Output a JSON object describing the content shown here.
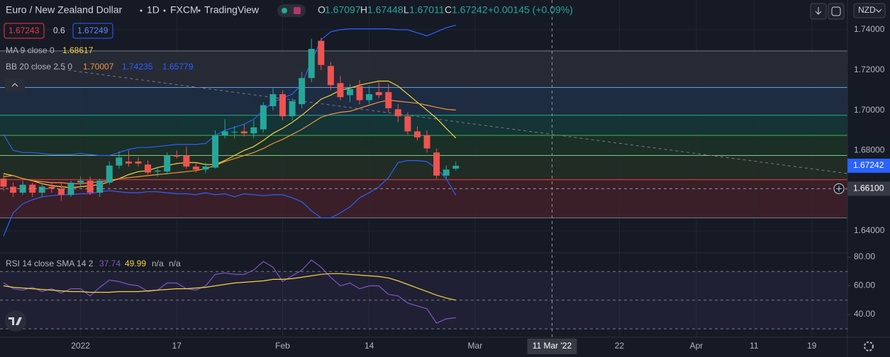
{
  "chart_data": {
    "type": "candlestick",
    "title": "Euro / New Zealand Dollar",
    "interval": "1D",
    "exchange": "FXCM",
    "source": "TradingView",
    "ohlc_labels": [
      "O",
      "H",
      "L",
      "C"
    ],
    "change": "+0.00145 (+0.09%)",
    "sell": 1.67243,
    "spread": 0.6,
    "buy": 1.67249,
    "currency": "NZD",
    "up_color": "#26a69a",
    "down_color": "#ef5350",
    "open": [
      1.666,
      1.662,
      1.659,
      1.663,
      1.659,
      1.662,
      1.661,
      1.658,
      1.664,
      1.665,
      1.659,
      1.664,
      1.6725,
      1.6745,
      1.6745,
      1.673,
      1.6695,
      1.6695,
      1.6775,
      1.6775,
      1.672,
      1.6705,
      1.6715,
      1.6875,
      1.689,
      1.6895,
      1.6885,
      1.6905,
      1.702,
      1.708,
      1.697,
      1.703,
      1.716,
      1.7345,
      1.722,
      1.7135,
      1.7075,
      1.712,
      1.705,
      1.709,
      1.709,
      1.7005,
      1.697,
      1.6895,
      1.6875,
      1.679,
      1.6675,
      1.67097
    ],
    "high": [
      1.668,
      1.664,
      1.665,
      1.664,
      1.663,
      1.664,
      1.664,
      1.665,
      1.667,
      1.667,
      1.666,
      1.6745,
      1.6795,
      1.68,
      1.6765,
      1.675,
      1.672,
      1.679,
      1.68,
      1.682,
      1.674,
      1.674,
      1.69,
      1.6955,
      1.692,
      1.693,
      1.695,
      1.704,
      1.711,
      1.71,
      1.706,
      1.719,
      1.7355,
      1.736,
      1.724,
      1.717,
      1.713,
      1.715,
      1.712,
      1.714,
      1.713,
      1.703,
      1.699,
      1.692,
      1.69,
      1.681,
      1.6725,
      1.67448
    ],
    "low": [
      1.66,
      1.657,
      1.658,
      1.657,
      1.657,
      1.659,
      1.655,
      1.657,
      1.662,
      1.658,
      1.657,
      1.663,
      1.671,
      1.672,
      1.672,
      1.668,
      1.667,
      1.668,
      1.676,
      1.671,
      1.669,
      1.669,
      1.671,
      1.686,
      1.686,
      1.687,
      1.686,
      1.689,
      1.7,
      1.695,
      1.695,
      1.701,
      1.714,
      1.72,
      1.71,
      1.705,
      1.704,
      1.703,
      1.703,
      1.706,
      1.699,
      1.694,
      1.688,
      1.685,
      1.679,
      1.666,
      1.666,
      1.67011
    ],
    "close": [
      1.662,
      1.659,
      1.663,
      1.659,
      1.662,
      1.661,
      1.658,
      1.664,
      1.665,
      1.659,
      1.665,
      1.6725,
      1.6765,
      1.6735,
      1.6735,
      1.669,
      1.67,
      1.6775,
      1.677,
      1.672,
      1.6705,
      1.672,
      1.6875,
      1.6895,
      1.6893,
      1.6885,
      1.6915,
      1.7025,
      1.708,
      1.697,
      1.7045,
      1.716,
      1.7305,
      1.7225,
      1.7125,
      1.7065,
      1.7105,
      1.705,
      1.708,
      1.7075,
      1.701,
      1.697,
      1.6895,
      1.6865,
      1.681,
      1.6675,
      1.6705,
      1.67242
    ],
    "overlays": [
      {
        "name": "MA 9 close 0",
        "lines": [
          {
            "color": "#f5d33e",
            "values": [
              1.6685,
              1.6675,
              1.666,
              1.665,
              1.6635,
              1.6625,
              1.662,
              1.6615,
              1.662,
              1.6625,
              1.663,
              1.6645,
              1.666,
              1.668,
              1.6695,
              1.67,
              1.6715,
              1.6725,
              1.6735,
              1.674,
              1.674,
              1.673,
              1.673,
              1.675,
              1.6775,
              1.68,
              1.682,
              1.685,
              1.6885,
              1.691,
              1.694,
              1.6975,
              1.7015,
              1.7055,
              1.7075,
              1.71,
              1.711,
              1.7125,
              1.7135,
              1.7145,
              1.7145,
              1.712,
              1.708,
              1.704,
              1.7,
              1.696,
              1.691,
              1.68617
            ]
          }
        ]
      },
      {
        "name": "BB 20 close 2.5 0",
        "lines": [
          {
            "color": "#f0953a",
            "values": [
              1.667,
              1.6675,
              1.666,
              1.665,
              1.6645,
              1.664,
              1.664,
              1.6635,
              1.6635,
              1.664,
              1.6645,
              1.665,
              1.666,
              1.6665,
              1.667,
              1.6675,
              1.668,
              1.6685,
              1.669,
              1.6695,
              1.67,
              1.671,
              1.6725,
              1.6745,
              1.676,
              1.6775,
              1.679,
              1.681,
              1.6835,
              1.6855,
              1.688,
              1.6905,
              1.6935,
              1.6965,
              1.698,
              1.699,
              1.6995,
              1.701,
              1.7025,
              1.704,
              1.705,
              1.7045,
              1.704,
              1.7035,
              1.7025,
              1.7015,
              1.7005,
              1.70007
            ]
          },
          {
            "color": "#2962ff",
            "values": [
              1.688,
              1.68,
              1.679,
              1.679,
              1.6785,
              1.678,
              1.678,
              1.678,
              1.6785,
              1.678,
              1.6775,
              1.6775,
              1.679,
              1.6805,
              1.6815,
              1.6815,
              1.682,
              1.6825,
              1.683,
              1.683,
              1.683,
              1.6835,
              1.6875,
              1.69,
              1.6915,
              1.693,
              1.6955,
              1.7,
              1.704,
              1.706,
              1.708,
              1.713,
              1.7245,
              1.735,
              1.739,
              1.74,
              1.7405,
              1.7405,
              1.7405,
              1.7405,
              1.7405,
              1.74,
              1.74,
              1.7385,
              1.737,
              1.739,
              1.741,
              1.74235
            ]
          },
          {
            "color": "#2962ff",
            "values": [
              1.6375,
              1.649,
              1.6535,
              1.6555,
              1.657,
              1.6575,
              1.658,
              1.658,
              1.6585,
              1.6585,
              1.6595,
              1.66,
              1.6595,
              1.659,
              1.659,
              1.6595,
              1.6595,
              1.659,
              1.6585,
              1.6585,
              1.658,
              1.659,
              1.658,
              1.6585,
              1.657,
              1.6585,
              1.658,
              1.6575,
              1.658,
              1.658,
              1.6565,
              1.6545,
              1.65,
              1.6465,
              1.6465,
              1.649,
              1.652,
              1.6565,
              1.659,
              1.662,
              1.6665,
              1.674,
              1.675,
              1.675,
              1.6745,
              1.671,
              1.666,
              1.65779
            ]
          }
        ]
      }
    ],
    "xlim": [
      -0.37,
      87.7
    ],
    "xticks": [
      {
        "value": 8,
        "label": "2022"
      },
      {
        "value": 18,
        "label": "17"
      },
      {
        "value": 29,
        "label": "Feb"
      },
      {
        "value": 38,
        "label": "14"
      },
      {
        "value": 49,
        "label": "Mar"
      },
      {
        "value": 64,
        "label": "22"
      },
      {
        "value": 72,
        "label": "Apr"
      },
      {
        "value": 78,
        "label": "11"
      },
      {
        "value": 84,
        "label": "19"
      }
    ],
    "ylim": [
      1.6298,
      1.7548
    ],
    "yticks": [
      {
        "value": 1.74,
        "label": "1.74000"
      },
      {
        "value": 1.72,
        "label": "1.72000"
      },
      {
        "value": 1.7,
        "label": "1.70000"
      },
      {
        "value": 1.68,
        "label": "1.68000"
      },
      {
        "value": 1.64,
        "label": "1.64000"
      }
    ],
    "grid": true,
    "levels": [
      {
        "value": 1.7295,
        "color": "#787b86",
        "fill": "#262a35"
      },
      {
        "value": 1.7113,
        "color": "#5b9cf6",
        "fill": "#1d2c40"
      },
      {
        "value": 1.6975,
        "color": "#22ab94",
        "fill": "#143435"
      },
      {
        "value": 1.6875,
        "color": "#4caf50",
        "fill": "#1a2f26"
      },
      {
        "value": 1.6775,
        "color": "#81c784",
        "fill": "#212c25"
      },
      {
        "value": 1.6655,
        "color": "#f23645",
        "fill": "#3a1f28"
      },
      {
        "value": 1.6465,
        "color": "#787b86"
      }
    ],
    "crosshair": {
      "x": {
        "value": 57,
        "label": "11 Mar '22"
      },
      "y": {
        "value": 1.661,
        "label": "1.66100"
      }
    },
    "rsi": {
      "name": "RSI 14 close SMA 14 2",
      "extra": [
        "n/a",
        "n/a"
      ],
      "ylim": [
        24.2,
        82.5
      ],
      "yticks": [
        {
          "value": 80,
          "label": "80.00"
        },
        {
          "value": 60,
          "label": "60.00"
        },
        {
          "value": 40,
          "label": "40.00"
        }
      ],
      "bands": [
        70,
        50,
        30
      ],
      "lines": [
        {
          "color": "#7e57c2",
          "values": [
            62,
            58,
            57,
            59,
            56,
            58,
            55,
            58,
            58,
            53,
            59,
            64,
            63,
            61,
            60,
            56,
            57,
            62,
            62,
            58,
            57,
            60,
            68,
            69,
            68,
            68,
            71,
            77,
            73,
            63,
            67,
            71,
            78,
            73,
            66,
            60,
            62,
            58,
            60,
            60,
            54,
            53,
            48,
            46,
            44,
            34,
            37,
            37.74
          ]
        },
        {
          "color": "#f5d33e",
          "values": [
            60,
            59,
            58.5,
            58,
            57.5,
            57,
            56.5,
            56,
            56,
            55.5,
            55.5,
            55.5,
            56,
            56,
            56,
            56.5,
            57,
            57.5,
            58,
            58,
            58.5,
            59,
            60,
            61,
            62,
            62.5,
            63,
            63.5,
            64.5,
            64.5,
            65,
            66,
            67,
            68,
            68.5,
            68.5,
            68,
            67.5,
            67,
            66.5,
            65.5,
            63.5,
            61,
            58.5,
            56,
            53.5,
            51.5,
            49.99
          ]
        }
      ]
    }
  }
}
